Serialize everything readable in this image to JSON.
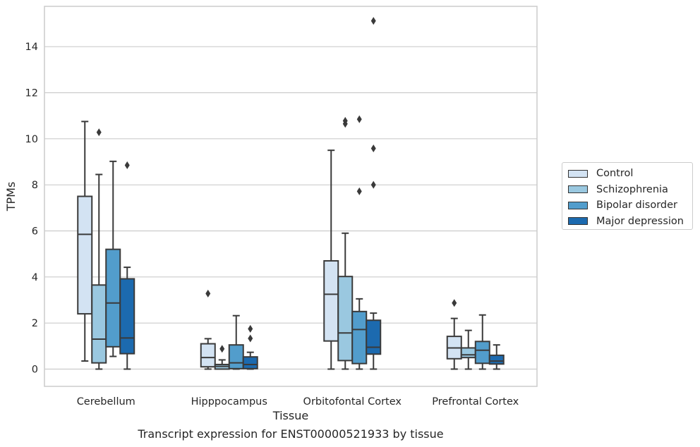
{
  "chart_data": {
    "type": "box",
    "title": "",
    "xlabel": "Tissue",
    "ylabel": "TPMs",
    "ylim": [
      -0.75,
      15.75
    ],
    "yticks": [
      0,
      2,
      4,
      6,
      8,
      10,
      12,
      14
    ],
    "grid": "horizontal",
    "legend_position": "right",
    "categories": [
      "Cerebellum",
      "Hipppocampus",
      "Orbitofontal Cortex",
      "Prefrontal Cortex"
    ],
    "series": [
      {
        "name": "Control",
        "color": "#d3e3f3",
        "boxes": [
          {
            "whislo": 0.35,
            "q1": 2.4,
            "med": 5.85,
            "q3": 7.5,
            "whishi": 10.75,
            "fliers": []
          },
          {
            "whislo": 0.0,
            "q1": 0.1,
            "med": 0.5,
            "q3": 1.1,
            "whishi": 1.32,
            "fliers": [
              3.28
            ]
          },
          {
            "whislo": 0.0,
            "q1": 1.22,
            "med": 3.25,
            "q3": 4.7,
            "whishi": 9.5,
            "fliers": []
          },
          {
            "whislo": 0.0,
            "q1": 0.45,
            "med": 0.92,
            "q3": 1.42,
            "whishi": 2.2,
            "fliers": [
              2.87
            ]
          }
        ]
      },
      {
        "name": "Schizophrenia",
        "color": "#9ac8e0",
        "boxes": [
          {
            "whislo": 0.0,
            "q1": 0.27,
            "med": 1.3,
            "q3": 3.65,
            "whishi": 8.45,
            "fliers": [
              10.28
            ]
          },
          {
            "whislo": 0.0,
            "q1": 0.0,
            "med": 0.12,
            "q3": 0.2,
            "whishi": 0.4,
            "fliers": [
              0.88
            ]
          },
          {
            "whislo": 0.0,
            "q1": 0.37,
            "med": 1.57,
            "q3": 4.02,
            "whishi": 5.9,
            "fliers": [
              10.65,
              10.78
            ]
          },
          {
            "whislo": 0.0,
            "q1": 0.5,
            "med": 0.62,
            "q3": 0.92,
            "whishi": 1.68,
            "fliers": []
          }
        ]
      },
      {
        "name": "Bipolar disorder",
        "color": "#529dcc",
        "boxes": [
          {
            "whislo": 0.55,
            "q1": 0.97,
            "med": 2.87,
            "q3": 5.2,
            "whishi": 9.02,
            "fliers": []
          },
          {
            "whislo": 0.0,
            "q1": 0.02,
            "med": 0.27,
            "q3": 1.05,
            "whishi": 2.32,
            "fliers": []
          },
          {
            "whislo": 0.0,
            "q1": 0.24,
            "med": 1.72,
            "q3": 2.5,
            "whishi": 3.05,
            "fliers": [
              7.72,
              10.85
            ]
          },
          {
            "whislo": 0.0,
            "q1": 0.25,
            "med": 0.82,
            "q3": 1.2,
            "whishi": 2.35,
            "fliers": []
          }
        ]
      },
      {
        "name": "Major depression",
        "color": "#1c6aaf",
        "boxes": [
          {
            "whislo": 0.0,
            "q1": 0.67,
            "med": 1.35,
            "q3": 3.92,
            "whishi": 4.42,
            "fliers": [
              8.85
            ]
          },
          {
            "whislo": 0.0,
            "q1": 0.02,
            "med": 0.2,
            "q3": 0.53,
            "whishi": 0.73,
            "fliers": [
              1.33,
              1.75
            ]
          },
          {
            "whislo": 0.0,
            "q1": 0.65,
            "med": 0.95,
            "q3": 2.12,
            "whishi": 2.43,
            "fliers": [
              8.0,
              9.58,
              15.12
            ]
          },
          {
            "whislo": 0.0,
            "q1": 0.22,
            "med": 0.35,
            "q3": 0.6,
            "whishi": 1.05,
            "fliers": []
          }
        ]
      }
    ]
  },
  "caption": "Transcript expression for ENST00000521933 by tissue"
}
